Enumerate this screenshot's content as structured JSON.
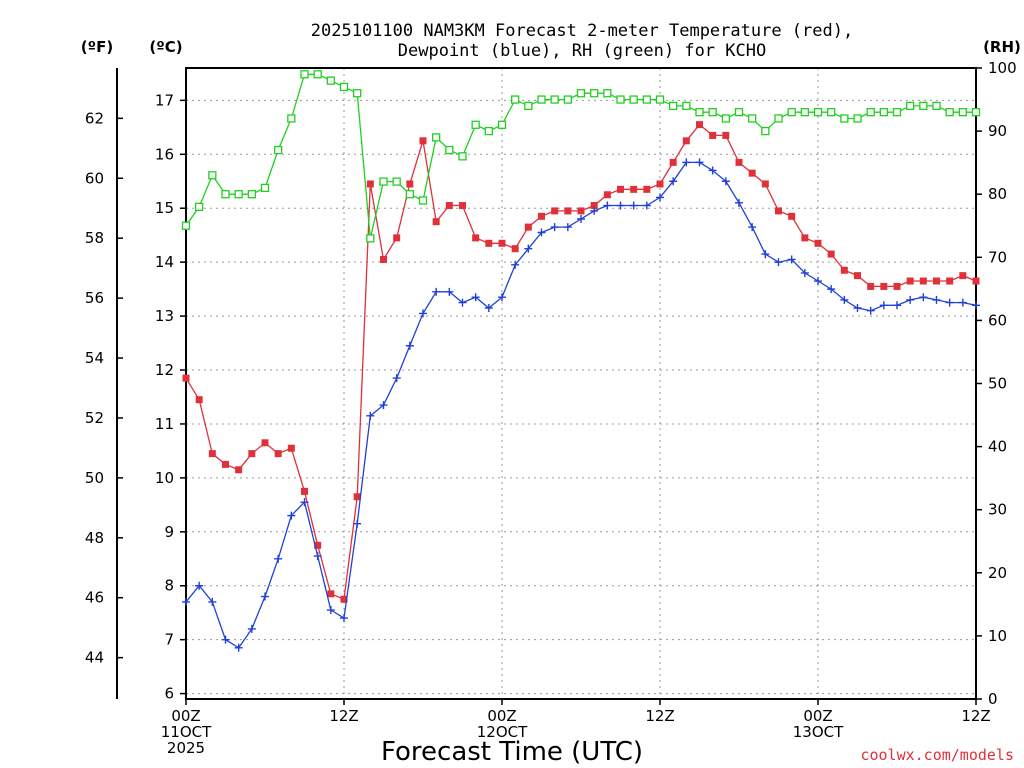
{
  "chart_data": {
    "type": "line",
    "title_line1": "2025101100 NAM3KM Forecast 2-meter Temperature (red),",
    "title_line2": "Dewpoint (blue), RH (green) for KCHO",
    "xlabel": "Forecast Time (UTC)",
    "credit": "coolwx.com/models",
    "units": {
      "f": "(ºF)",
      "c": "(ºC)",
      "rh": "(RH)"
    },
    "x_range_hours": [
      0,
      60
    ],
    "c_range": [
      5.9,
      17.6
    ],
    "rh_range": [
      0,
      100
    ],
    "x_ticks": [
      {
        "hour": 0,
        "lines": [
          "00Z",
          "11OCT",
          "2025"
        ]
      },
      {
        "hour": 12,
        "lines": [
          "12Z"
        ]
      },
      {
        "hour": 24,
        "lines": [
          "00Z",
          "12OCT"
        ]
      },
      {
        "hour": 36,
        "lines": [
          "12Z"
        ]
      },
      {
        "hour": 48,
        "lines": [
          "00Z",
          "13OCT"
        ]
      },
      {
        "hour": 60,
        "lines": [
          "12Z"
        ]
      }
    ],
    "c_ticks": [
      6,
      7,
      8,
      9,
      10,
      11,
      12,
      13,
      14,
      15,
      16,
      17
    ],
    "f_ticks": [
      44,
      46,
      48,
      50,
      52,
      54,
      56,
      58,
      60,
      62
    ],
    "rh_ticks": [
      0,
      10,
      20,
      30,
      40,
      50,
      60,
      70,
      80,
      90,
      100
    ],
    "series": [
      {
        "name": "Temperature",
        "unit": "C",
        "color": "#e0303a",
        "marker": "filled-square",
        "values": [
          11.85,
          11.45,
          10.45,
          10.25,
          10.15,
          10.45,
          10.65,
          10.45,
          10.55,
          9.75,
          8.75,
          7.85,
          7.75,
          9.65,
          15.45,
          14.05,
          14.45,
          15.45,
          16.25,
          14.75,
          15.05,
          15.05,
          14.45,
          14.35,
          14.35,
          14.25,
          14.65,
          14.85,
          14.95,
          14.95,
          14.95,
          15.05,
          15.25,
          15.35,
          15.35,
          15.35,
          15.45,
          15.85,
          16.25,
          16.55,
          16.35,
          16.35,
          15.85,
          15.65,
          15.45,
          14.95,
          14.85,
          14.45,
          14.35,
          14.15,
          13.85,
          13.75,
          13.55,
          13.55,
          13.55,
          13.65,
          13.65,
          13.65,
          13.65,
          13.75,
          13.65
        ]
      },
      {
        "name": "Dewpoint",
        "unit": "C",
        "color": "#2040d8",
        "marker": "plus",
        "values": [
          7.7,
          8.0,
          7.7,
          7.0,
          6.85,
          7.2,
          7.8,
          8.5,
          9.3,
          9.55,
          8.55,
          7.55,
          7.4,
          9.15,
          11.15,
          11.35,
          11.85,
          12.45,
          13.05,
          13.45,
          13.45,
          13.25,
          13.35,
          13.15,
          13.35,
          13.95,
          14.25,
          14.55,
          14.65,
          14.65,
          14.8,
          14.95,
          15.05,
          15.05,
          15.05,
          15.05,
          15.2,
          15.5,
          15.85,
          15.85,
          15.7,
          15.5,
          15.1,
          14.65,
          14.15,
          14.0,
          14.05,
          13.8,
          13.65,
          13.5,
          13.3,
          13.15,
          13.1,
          13.2,
          13.2,
          13.3,
          13.35,
          13.3,
          13.25,
          13.25,
          13.2
        ]
      },
      {
        "name": "RH",
        "unit": "%",
        "color": "#20d020",
        "marker": "open-square",
        "values": [
          75,
          78,
          83,
          80,
          80,
          80,
          81,
          87,
          92,
          99,
          99,
          98,
          97,
          96,
          73,
          82,
          82,
          80,
          79,
          89,
          87,
          86,
          91,
          90,
          91,
          95,
          94,
          95,
          95,
          95,
          96,
          96,
          96,
          95,
          95,
          95,
          95,
          94,
          94,
          93,
          93,
          92,
          93,
          92,
          90,
          92,
          93,
          93,
          93,
          93,
          92,
          92,
          93,
          93,
          93,
          94,
          94,
          94,
          93,
          93,
          93
        ]
      }
    ]
  }
}
